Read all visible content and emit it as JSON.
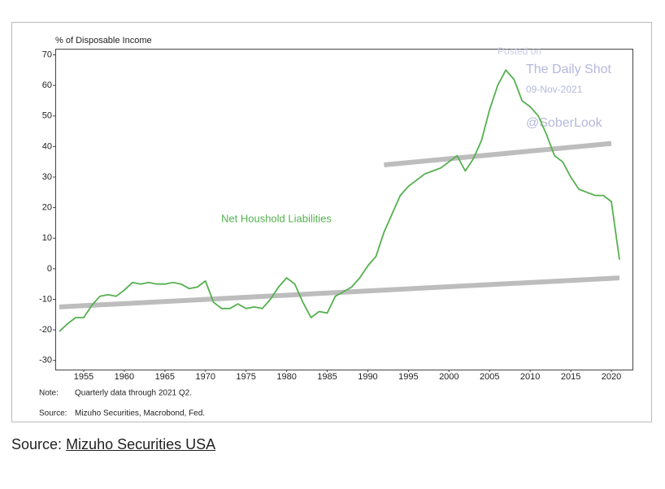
{
  "chart_data": {
    "type": "line",
    "y_label": "% of Disposable Income",
    "annotation": "Net Houshold Liabilities",
    "watermark": [
      "Posted on",
      "The Daily Shot",
      "09-Nov-2021",
      "@SoberLook"
    ],
    "notes": [
      {
        "key": "Note:",
        "text": "Quarterly data through 2021 Q2."
      },
      {
        "key": "Source:",
        "text": "Mizuho Securities, Macrobond, Fed."
      }
    ],
    "series": [
      {
        "name": "Net Houshold Liabilities",
        "color": "#55b04f",
        "x": [
          1952,
          1953,
          1954,
          1955,
          1956,
          1957,
          1958,
          1959,
          1960,
          1961,
          1962,
          1963,
          1964,
          1965,
          1966,
          1967,
          1968,
          1969,
          1970,
          1971,
          1972,
          1973,
          1974,
          1975,
          1976,
          1977,
          1978,
          1979,
          1980,
          1981,
          1982,
          1983,
          1984,
          1985,
          1986,
          1987,
          1988,
          1989,
          1990,
          1991,
          1992,
          1993,
          1994,
          1995,
          1996,
          1997,
          1998,
          1999,
          2000,
          2001,
          2002,
          2003,
          2004,
          2005,
          2006,
          2007,
          2008,
          2009,
          2010,
          2011,
          2012,
          2013,
          2014,
          2015,
          2016,
          2017,
          2018,
          2019,
          2020,
          2021
        ],
        "values": [
          -20.5,
          -18,
          -16,
          -16,
          -12,
          -9,
          -8.5,
          -9,
          -7,
          -4.5,
          -5,
          -4.5,
          -5,
          -5,
          -4.5,
          -5,
          -6.5,
          -6,
          -4,
          -11,
          -13,
          -13,
          -11.5,
          -13,
          -12.5,
          -13,
          -10,
          -6,
          -3,
          -5,
          -11,
          -16,
          -14,
          -14.5,
          -9,
          -7.5,
          -6,
          -3,
          1,
          4,
          12,
          18,
          24,
          27,
          29,
          31,
          32,
          33,
          35,
          37,
          32,
          36,
          42,
          52,
          60,
          65,
          62,
          55,
          53,
          50,
          44,
          37,
          35,
          30,
          26,
          25,
          24,
          24,
          22,
          3
        ]
      }
    ],
    "trend_lines": [
      {
        "color": "#bdbdbd",
        "x": [
          1952,
          2021
        ],
        "values": [
          -12.5,
          -3
        ]
      },
      {
        "color": "#bdbdbd",
        "x": [
          1992,
          2020
        ],
        "values": [
          34,
          41
        ]
      }
    ],
    "xlim": [
      1951.5,
      2022.6
    ],
    "ylim": [
      -33,
      72
    ],
    "xticks": [
      1955,
      1960,
      1965,
      1970,
      1975,
      1980,
      1985,
      1990,
      1995,
      2000,
      2005,
      2010,
      2015,
      2020
    ],
    "yticks": [
      -30,
      -20,
      -10,
      0,
      10,
      20,
      30,
      40,
      50,
      60,
      70
    ],
    "grid": false
  },
  "caption": {
    "prefix": "Source:",
    "link": "Mizuho Securities USA"
  }
}
